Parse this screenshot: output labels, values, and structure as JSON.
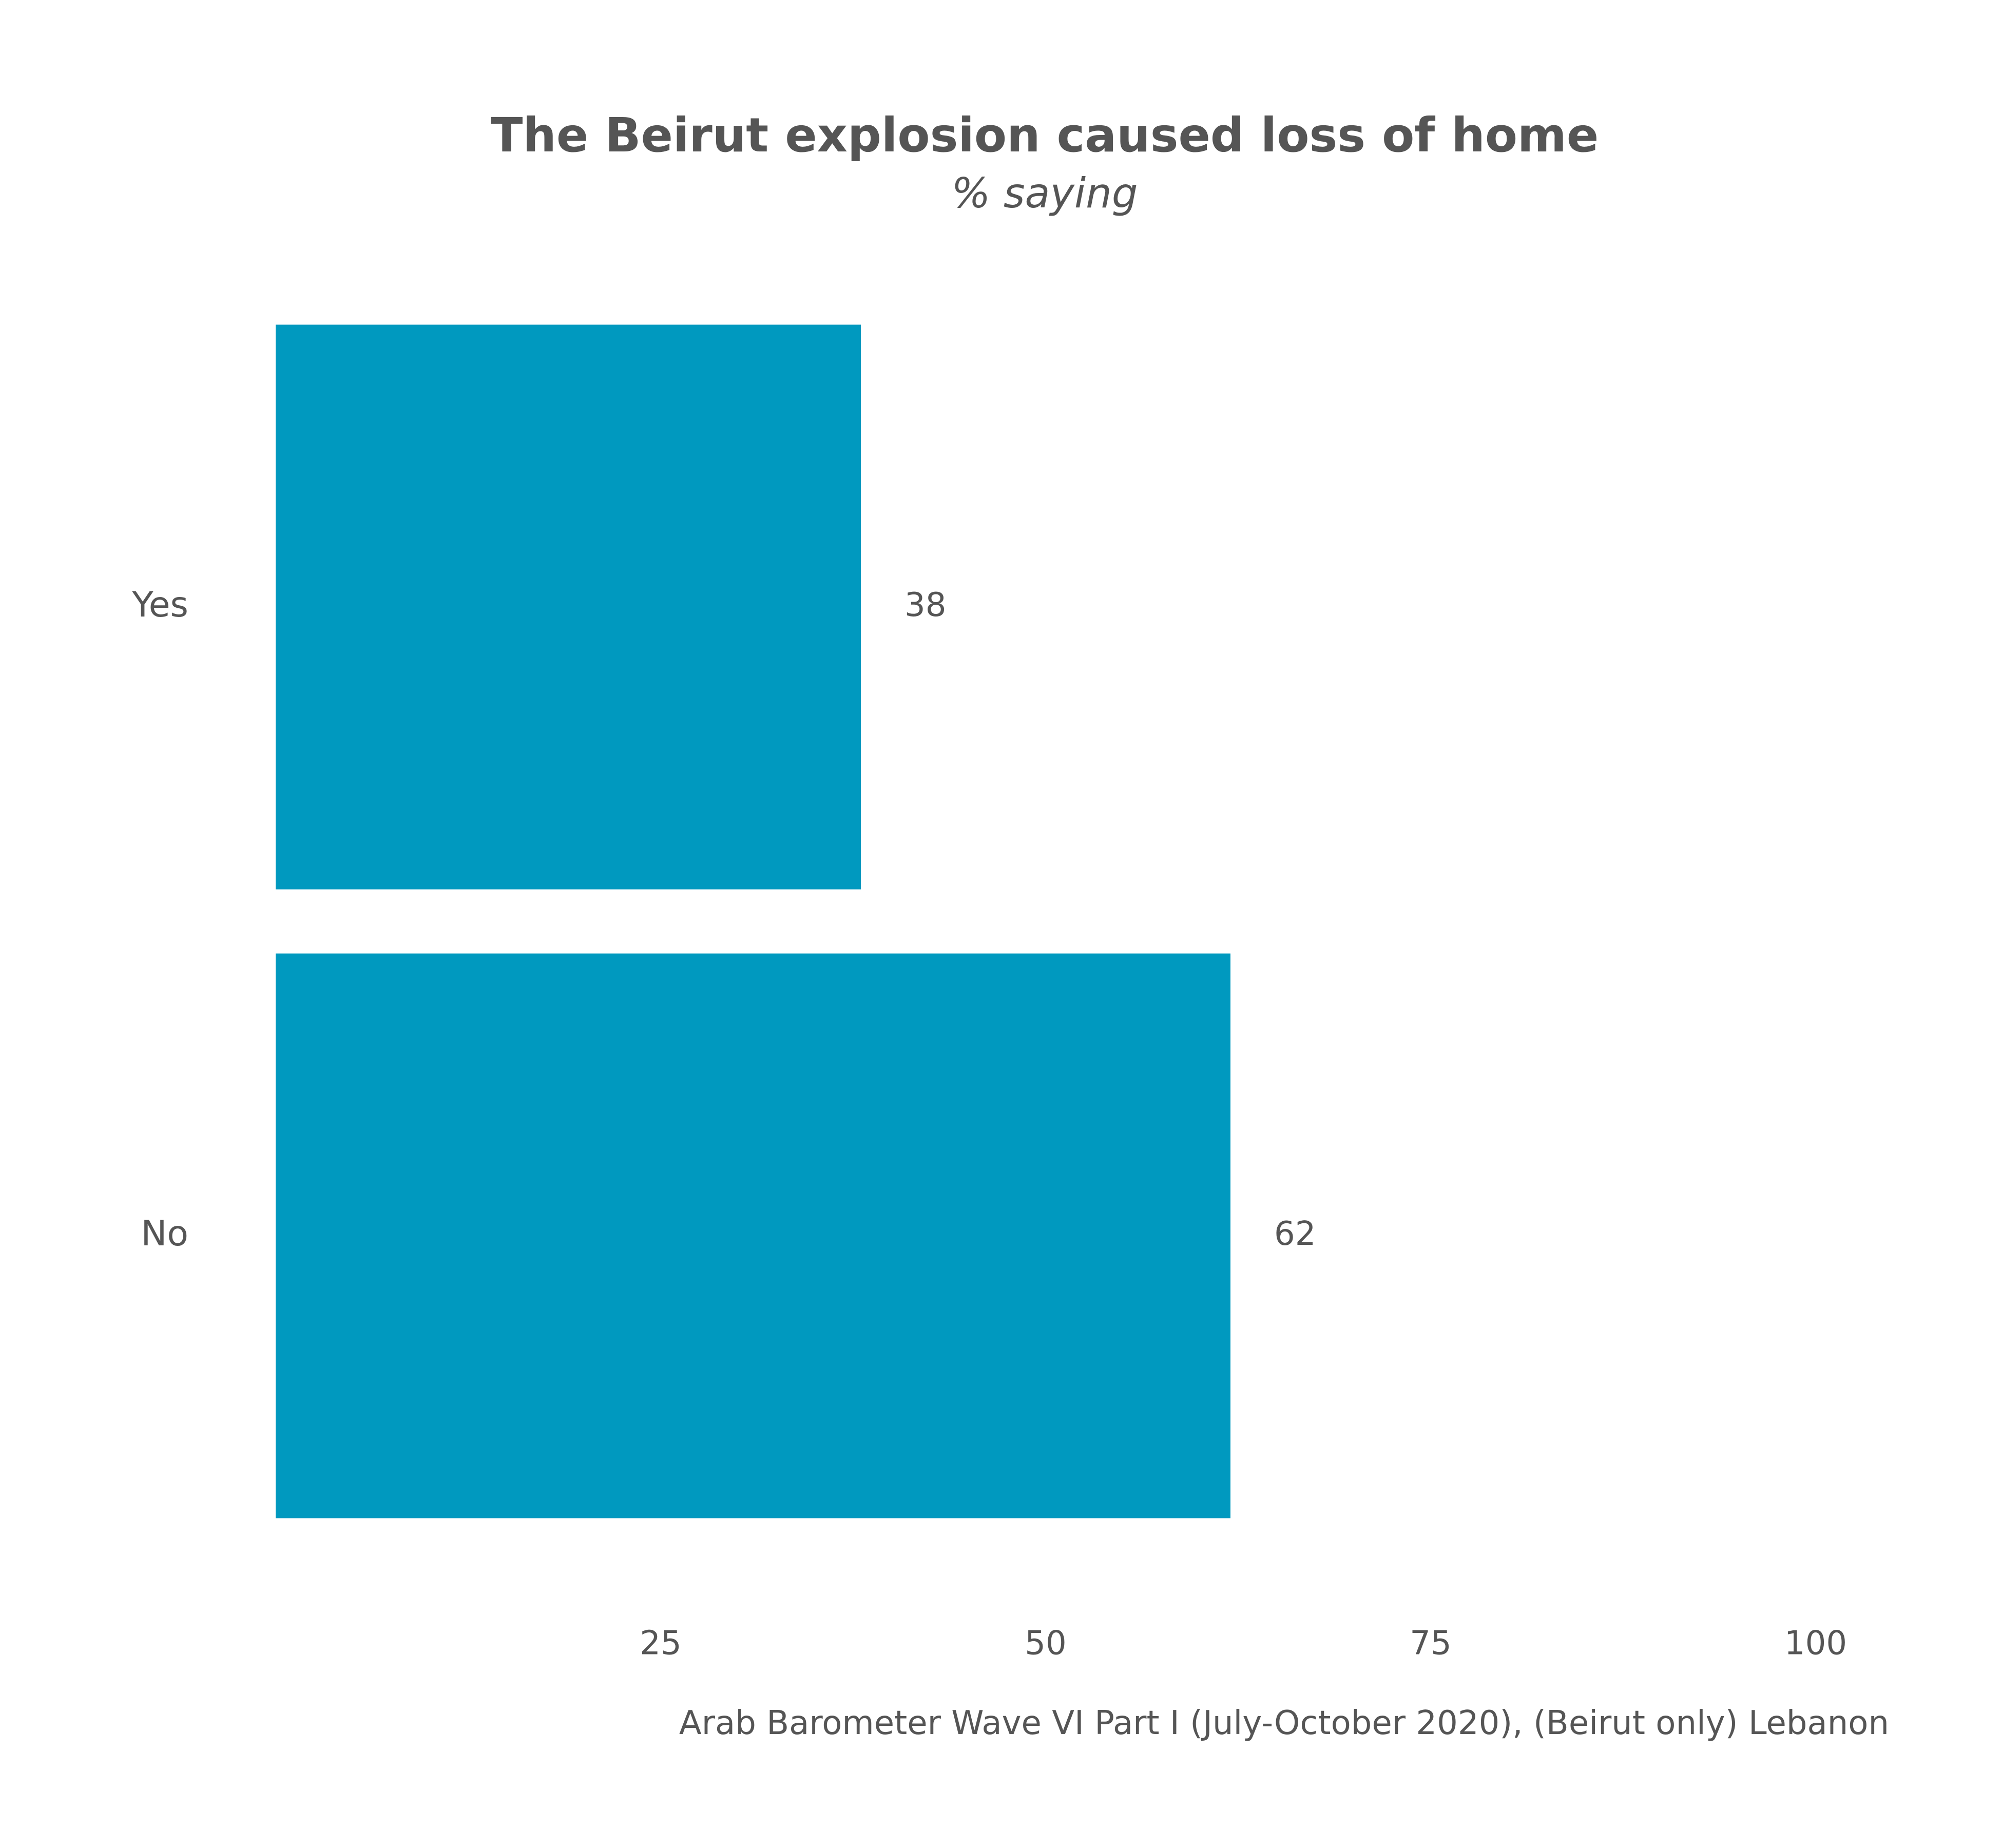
{
  "chart_data": {
    "type": "bar",
    "orientation": "horizontal",
    "title": "The Beirut explosion caused loss of home",
    "subtitle": "% saying",
    "categories": [
      "Yes",
      "No"
    ],
    "values": [
      38,
      62
    ],
    "value_labels": [
      "38",
      "62"
    ],
    "xlim": [
      0,
      100
    ],
    "x_ticks": [
      25,
      50,
      75,
      100
    ],
    "x_tick_labels": [
      "25",
      "50",
      "75",
      "100"
    ],
    "xlabel": "",
    "ylabel": "",
    "grid": false,
    "bar_color": "#0099BF",
    "text_color": "#555555",
    "caption": "Arab Barometer Wave VI Part I (July-October 2020), (Beirut only) Lebanon"
  }
}
